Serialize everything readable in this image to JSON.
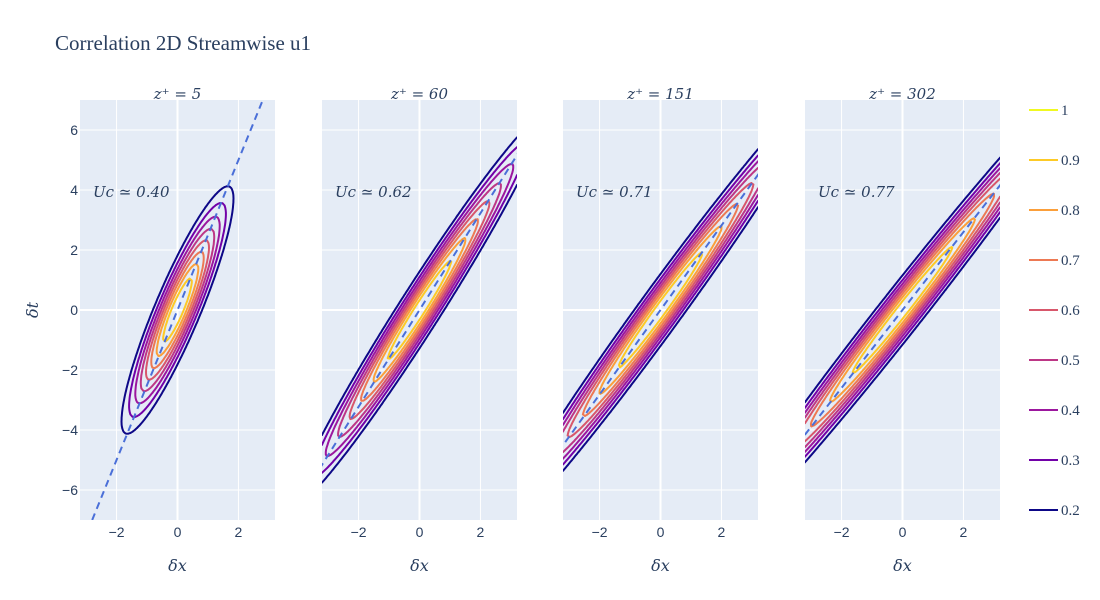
{
  "chart_data": {
    "type": "contour",
    "title": "Correlation 2D Streamwise u1",
    "xlabel": "δx",
    "ylabel": "δt",
    "xlim": [
      -3.2,
      3.2
    ],
    "ylim": [
      -7,
      7
    ],
    "x_ticks": [
      -2,
      0,
      2
    ],
    "y_ticks": [
      6,
      4,
      2,
      0,
      -2,
      -4,
      -6
    ],
    "x_tick_labels": [
      "−2",
      "0",
      "2"
    ],
    "y_tick_labels": [
      "6",
      "4",
      "2",
      "0",
      "−2",
      "−4",
      "−6"
    ],
    "grid": true,
    "legend_position": "right",
    "levels": [
      1,
      0.9,
      0.8,
      0.7,
      0.6,
      0.5,
      0.4,
      0.3,
      0.2
    ],
    "level_colors": {
      "1": "#f0f921",
      "0.9": "#fdca26",
      "0.8": "#fb9f3a",
      "0.7": "#ed7953",
      "0.6": "#d8576b",
      "0.5": "#bd3786",
      "0.4": "#9c179e",
      "0.3": "#7201a8",
      "0.2": "#0d0887"
    },
    "dash_line_color": "#4a6fd8",
    "panels": [
      {
        "subtitle": "z⁺ = 5",
        "annotation": "Uc ≃ 0.40",
        "uc": 0.4
      },
      {
        "subtitle": "z⁺ = 60",
        "annotation": "Uc ≃ 0.62",
        "uc": 0.62
      },
      {
        "subtitle": "z⁺ = 151",
        "annotation": "Uc ≃ 0.71",
        "uc": 0.71
      },
      {
        "subtitle": "z⁺ = 302",
        "annotation": "Uc ≃ 0.77",
        "uc": 0.77
      }
    ]
  }
}
